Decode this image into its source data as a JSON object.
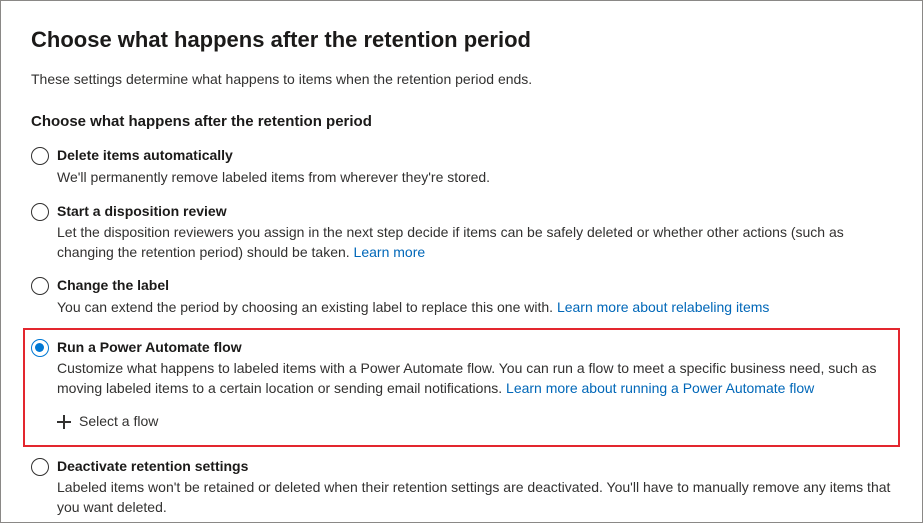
{
  "page": {
    "title": "Choose what happens after the retention period",
    "subtitle": "These settings determine what happens to items when the retention period ends.",
    "section_title": "Choose what happens after the retention period"
  },
  "options": {
    "delete": {
      "label": "Delete items automatically",
      "desc": "We'll permanently remove labeled items from wherever they're stored.",
      "selected": false
    },
    "disposition": {
      "label": "Start a disposition review",
      "desc_before": "Let the disposition reviewers you assign in the next step decide if items can be safely deleted or whether other actions (such as changing the retention period) should be taken.  ",
      "link": "Learn more",
      "selected": false
    },
    "change_label": {
      "label": "Change the label",
      "desc_before": "You can extend the period by choosing an existing label to replace this one with. ",
      "link": "Learn more about relabeling items",
      "selected": false
    },
    "power_automate": {
      "label": "Run a Power Automate flow",
      "desc_before": "Customize what happens to labeled items with a Power Automate flow. You can run a flow to meet a specific business need, such as moving labeled items to a certain location or sending email notifications. ",
      "link": "Learn more about running a Power Automate flow",
      "select_flow_label": "Select a flow",
      "selected": true
    },
    "deactivate": {
      "label": "Deactivate retention settings",
      "desc": "Labeled items won't be retained or deleted when their retention settings are deactivated. You'll have to manually remove any items that you want deleted.",
      "selected": false
    }
  },
  "colors": {
    "link": "#0067b8",
    "accent": "#0078d4",
    "highlight_border": "#e3262e"
  }
}
